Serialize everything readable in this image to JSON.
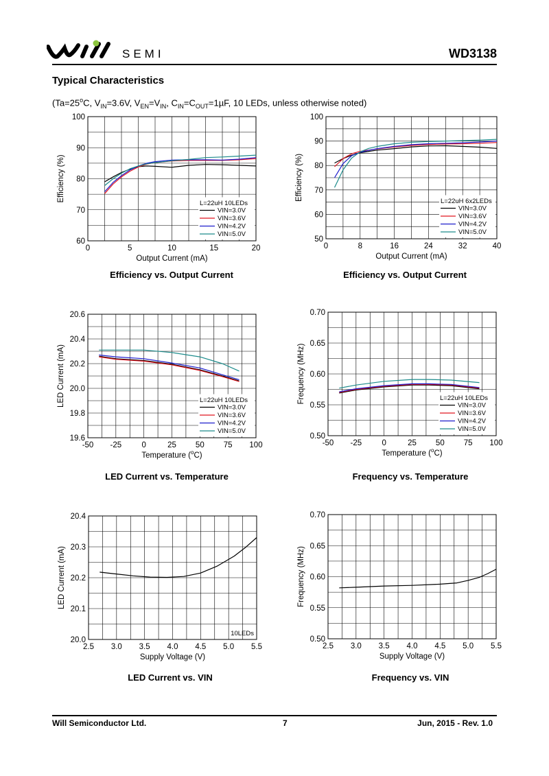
{
  "header": {
    "logo_text": "SEMI",
    "part_number": "WD3138",
    "colors": {
      "logo_dot": "#8dc63f"
    }
  },
  "section_title": "Typical Characteristics",
  "conditions": {
    "prefix": "(Ta=25",
    "deg": "o",
    "p1": "C, V",
    "s1": "IN",
    "p2": "=3.6V, V",
    "s2": "EN",
    "p3": "=V",
    "s3": "IN",
    "p4": ", C",
    "s4": "IN",
    "p5": "=C",
    "s5": "OUT",
    "p6": "=1µF, 10 LEDs, unless otherwise noted)"
  },
  "series_colors": {
    "VIN=3.0V": "#000000",
    "VIN=3.6V": "#e0141e",
    "VIN=4.2V": "#1c1ccc",
    "VIN=5.0V": "#1a8a8a"
  },
  "chart_data": [
    {
      "type": "line",
      "title": "Efficiency vs. Output Current",
      "xlabel": "Output Current (mA)",
      "ylabel": "Efficiency (%)",
      "xlim": [
        0,
        20
      ],
      "ylim": [
        60,
        100
      ],
      "xticks": [
        0,
        5,
        10,
        15,
        20
      ],
      "yticks": [
        60,
        70,
        80,
        90,
        100
      ],
      "x_grid": [
        0,
        2,
        4,
        6,
        8,
        10,
        12,
        14,
        16,
        18,
        20
      ],
      "y_grid": [
        60,
        65,
        70,
        75,
        80,
        85,
        90,
        95,
        100
      ],
      "legend_title": "L=22uH 10LEDs",
      "legend_position": "bottom-right",
      "series": [
        {
          "name": "VIN=3.0V",
          "x": [
            2,
            3,
            4,
            5,
            6,
            7,
            8,
            10,
            12,
            14,
            16,
            18,
            20
          ],
          "y": [
            79.0,
            80.6,
            82.0,
            83.1,
            83.9,
            84.1,
            84.0,
            83.7,
            84.3,
            84.6,
            84.5,
            84.3,
            84.1
          ]
        },
        {
          "name": "VIN=3.6V",
          "x": [
            2,
            3,
            4,
            5,
            6,
            7,
            8,
            10,
            12,
            14,
            16,
            18,
            20
          ],
          "y": [
            75.2,
            78.3,
            80.6,
            82.4,
            83.8,
            84.7,
            85.2,
            85.7,
            85.9,
            85.9,
            85.9,
            86.1,
            86.5
          ]
        },
        {
          "name": "VIN=4.2V",
          "x": [
            2,
            3,
            4,
            5,
            6,
            7,
            8,
            10,
            12,
            14,
            16,
            18,
            20
          ],
          "y": [
            75.8,
            78.8,
            81.0,
            82.8,
            84.1,
            85.0,
            85.5,
            86.0,
            86.1,
            86.1,
            86.0,
            86.3,
            86.8
          ]
        },
        {
          "name": "VIN=5.0V",
          "x": [
            2,
            3,
            4,
            5,
            6,
            7,
            8,
            10,
            12,
            14,
            16,
            18,
            20
          ],
          "y": [
            77.8,
            80.0,
            81.8,
            83.2,
            84.1,
            84.8,
            85.2,
            85.8,
            86.2,
            86.8,
            87.0,
            87.3,
            87.6
          ]
        }
      ]
    },
    {
      "type": "line",
      "title": "Efficiency vs. Output Current",
      "xlabel": "Output Current (mA)",
      "ylabel": "Efficiency (%)",
      "xlim": [
        0,
        40
      ],
      "ylim": [
        50,
        100
      ],
      "xticks": [
        0,
        8,
        16,
        24,
        32,
        40
      ],
      "yticks": [
        50,
        60,
        70,
        80,
        90,
        100
      ],
      "x_grid": [
        0,
        4,
        8,
        12,
        16,
        20,
        24,
        28,
        32,
        36,
        40
      ],
      "y_grid": [
        50,
        55,
        60,
        65,
        70,
        75,
        80,
        85,
        90,
        95,
        100
      ],
      "legend_title": "L=22uH 6x2LEDs",
      "legend_position": "bottom-right",
      "series": [
        {
          "name": "VIN=3.0V",
          "x": [
            2,
            4,
            6,
            8,
            10,
            12,
            16,
            20,
            24,
            28,
            32,
            36,
            40
          ],
          "y": [
            81.0,
            82.8,
            84.2,
            85.2,
            85.8,
            86.3,
            86.9,
            87.6,
            88.0,
            88.1,
            87.8,
            87.5,
            87.0
          ]
        },
        {
          "name": "VIN=3.6V",
          "x": [
            2,
            4,
            6,
            8,
            10,
            12,
            16,
            20,
            24,
            28,
            32,
            36,
            40
          ],
          "y": [
            79.5,
            82.8,
            84.8,
            85.8,
            86.3,
            86.8,
            87.6,
            88.2,
            88.6,
            88.8,
            88.9,
            89.1,
            89.4
          ]
        },
        {
          "name": "VIN=4.2V",
          "x": [
            2,
            4,
            6,
            8,
            10,
            12,
            16,
            20,
            24,
            28,
            32,
            36,
            40
          ],
          "y": [
            75.0,
            80.8,
            84.0,
            85.4,
            86.2,
            86.9,
            87.8,
            88.5,
            88.9,
            89.1,
            89.3,
            89.6,
            90.0
          ]
        },
        {
          "name": "VIN=5.0V",
          "x": [
            2,
            4,
            6,
            8,
            10,
            12,
            16,
            20,
            24,
            28,
            32,
            36,
            40
          ],
          "y": [
            71.0,
            78.2,
            83.0,
            85.6,
            87.0,
            87.8,
            88.9,
            89.5,
            89.8,
            90.0,
            90.2,
            90.4,
            90.7
          ]
        }
      ]
    },
    {
      "type": "line",
      "title": "LED Current vs. Temperature",
      "xlabel_parts": [
        "Temperature (",
        "o",
        "C)"
      ],
      "ylabel": "LED Current (mA)",
      "xlim": [
        -50,
        100
      ],
      "ylim": [
        19.6,
        20.6
      ],
      "xticks": [
        -50,
        -25,
        0,
        25,
        50,
        75,
        100
      ],
      "yticks": [
        19.6,
        19.8,
        20.0,
        20.2,
        20.4,
        20.6
      ],
      "x_grid": [
        -50,
        -37.5,
        -25,
        -12.5,
        0,
        12.5,
        25,
        37.5,
        50,
        62.5,
        75,
        87.5,
        100
      ],
      "y_grid": [
        19.6,
        19.7,
        19.8,
        19.9,
        20.0,
        20.1,
        20.2,
        20.3,
        20.4,
        20.5,
        20.6
      ],
      "legend_title": "L=22uH 10LEDs",
      "legend_position": "bottom-right",
      "series": [
        {
          "name": "VIN=3.0V",
          "x": [
            -40,
            -25,
            0,
            25,
            50,
            70,
            85
          ],
          "y": [
            20.26,
            20.24,
            20.225,
            20.195,
            20.15,
            20.1,
            20.06
          ]
        },
        {
          "name": "VIN=3.6V",
          "x": [
            -40,
            -25,
            0,
            25,
            50,
            70,
            85
          ],
          "y": [
            20.255,
            20.235,
            20.22,
            20.19,
            20.145,
            20.095,
            20.055
          ]
        },
        {
          "name": "VIN=4.2V",
          "x": [
            -40,
            -25,
            0,
            25,
            50,
            70,
            85
          ],
          "y": [
            20.27,
            20.255,
            20.24,
            20.205,
            20.165,
            20.11,
            20.07
          ]
        },
        {
          "name": "VIN=5.0V",
          "x": [
            -40,
            -25,
            0,
            25,
            50,
            70,
            85
          ],
          "y": [
            20.31,
            20.31,
            20.31,
            20.29,
            20.255,
            20.2,
            20.14
          ]
        }
      ]
    },
    {
      "type": "line",
      "title": "Frequency vs. Temperature",
      "xlabel_parts": [
        "Temperature (",
        "o",
        "C)"
      ],
      "ylabel": "Frequency (MHz)",
      "xlim": [
        -50,
        100
      ],
      "ylim": [
        0.5,
        0.7
      ],
      "xticks": [
        -50,
        -25,
        0,
        25,
        50,
        75,
        100
      ],
      "yticks": [
        0.5,
        0.55,
        0.6,
        0.65,
        0.7
      ],
      "x_grid": [
        -50,
        -37.5,
        -25,
        -12.5,
        0,
        12.5,
        25,
        37.5,
        50,
        62.5,
        75,
        87.5,
        100
      ],
      "y_grid": [
        0.5,
        0.525,
        0.55,
        0.575,
        0.6,
        0.625,
        0.65,
        0.675,
        0.7
      ],
      "legend_title": "L=22uH 10LEDs",
      "legend_position": "bottom-right",
      "series": [
        {
          "name": "VIN=3.0V",
          "x": [
            -40,
            -25,
            0,
            25,
            40,
            60,
            85
          ],
          "y": [
            0.569,
            0.574,
            0.579,
            0.582,
            0.582,
            0.581,
            0.576
          ]
        },
        {
          "name": "VIN=3.6V",
          "x": [
            -40,
            -25,
            0,
            25,
            40,
            60,
            85
          ],
          "y": [
            0.57,
            0.575,
            0.58,
            0.583,
            0.583,
            0.582,
            0.577
          ]
        },
        {
          "name": "VIN=4.2V",
          "x": [
            -40,
            -25,
            0,
            25,
            40,
            60,
            85
          ],
          "y": [
            0.571,
            0.576,
            0.581,
            0.584,
            0.584,
            0.583,
            0.578
          ]
        },
        {
          "name": "VIN=5.0V",
          "x": [
            -40,
            -25,
            0,
            25,
            40,
            60,
            85
          ],
          "y": [
            0.577,
            0.582,
            0.588,
            0.591,
            0.591,
            0.59,
            0.586
          ]
        }
      ]
    },
    {
      "type": "line",
      "title": "LED Current vs. VIN",
      "xlabel": "Supply Voltage (V)",
      "ylabel": "LED Current (mA)",
      "xlim": [
        2.5,
        5.5
      ],
      "ylim": [
        20.0,
        20.4
      ],
      "xticks": [
        2.5,
        3.0,
        3.5,
        4.0,
        4.5,
        5.0,
        5.5
      ],
      "yticks": [
        20.0,
        20.1,
        20.2,
        20.3,
        20.4
      ],
      "x_grid": [
        2.5,
        2.75,
        3.0,
        3.25,
        3.5,
        3.75,
        4.0,
        4.25,
        4.5,
        4.75,
        5.0,
        5.25,
        5.5
      ],
      "y_grid": [
        20.0,
        20.05,
        20.1,
        20.15,
        20.2,
        20.25,
        20.3,
        20.35,
        20.4
      ],
      "legend_title": "10LEDs",
      "legend_position": "bottom-right",
      "series": [
        {
          "name": "",
          "x": [
            2.7,
            3.0,
            3.3,
            3.6,
            3.9,
            4.2,
            4.5,
            4.8,
            5.1,
            5.3,
            5.5
          ],
          "y": [
            20.218,
            20.212,
            20.206,
            20.202,
            20.201,
            20.204,
            20.215,
            20.238,
            20.27,
            20.298,
            20.33
          ]
        }
      ]
    },
    {
      "type": "line",
      "title": "Frequency vs. VIN",
      "xlabel": "Supply Voltage (V)",
      "ylabel": "Frequency (MHz)",
      "xlim": [
        2.5,
        5.5
      ],
      "ylim": [
        0.5,
        0.7
      ],
      "xticks": [
        2.5,
        3.0,
        3.5,
        4.0,
        4.5,
        5.0,
        5.5
      ],
      "yticks": [
        0.5,
        0.55,
        0.6,
        0.65,
        0.7
      ],
      "x_grid": [
        2.5,
        2.75,
        3.0,
        3.25,
        3.5,
        3.75,
        4.0,
        4.25,
        4.5,
        4.75,
        5.0,
        5.25,
        5.5
      ],
      "y_grid": [
        0.5,
        0.525,
        0.55,
        0.575,
        0.6,
        0.625,
        0.65,
        0.675,
        0.7
      ],
      "legend_title": "",
      "series": [
        {
          "name": "",
          "x": [
            2.7,
            3.0,
            3.5,
            4.0,
            4.5,
            4.8,
            5.0,
            5.2,
            5.35,
            5.5
          ],
          "y": [
            0.582,
            0.583,
            0.585,
            0.586,
            0.588,
            0.59,
            0.594,
            0.599,
            0.605,
            0.612
          ]
        }
      ]
    }
  ],
  "footer": {
    "company": "Will Semiconductor Ltd.",
    "page": "7",
    "date_rev": "Jun, 2015 - Rev. 1.0"
  }
}
